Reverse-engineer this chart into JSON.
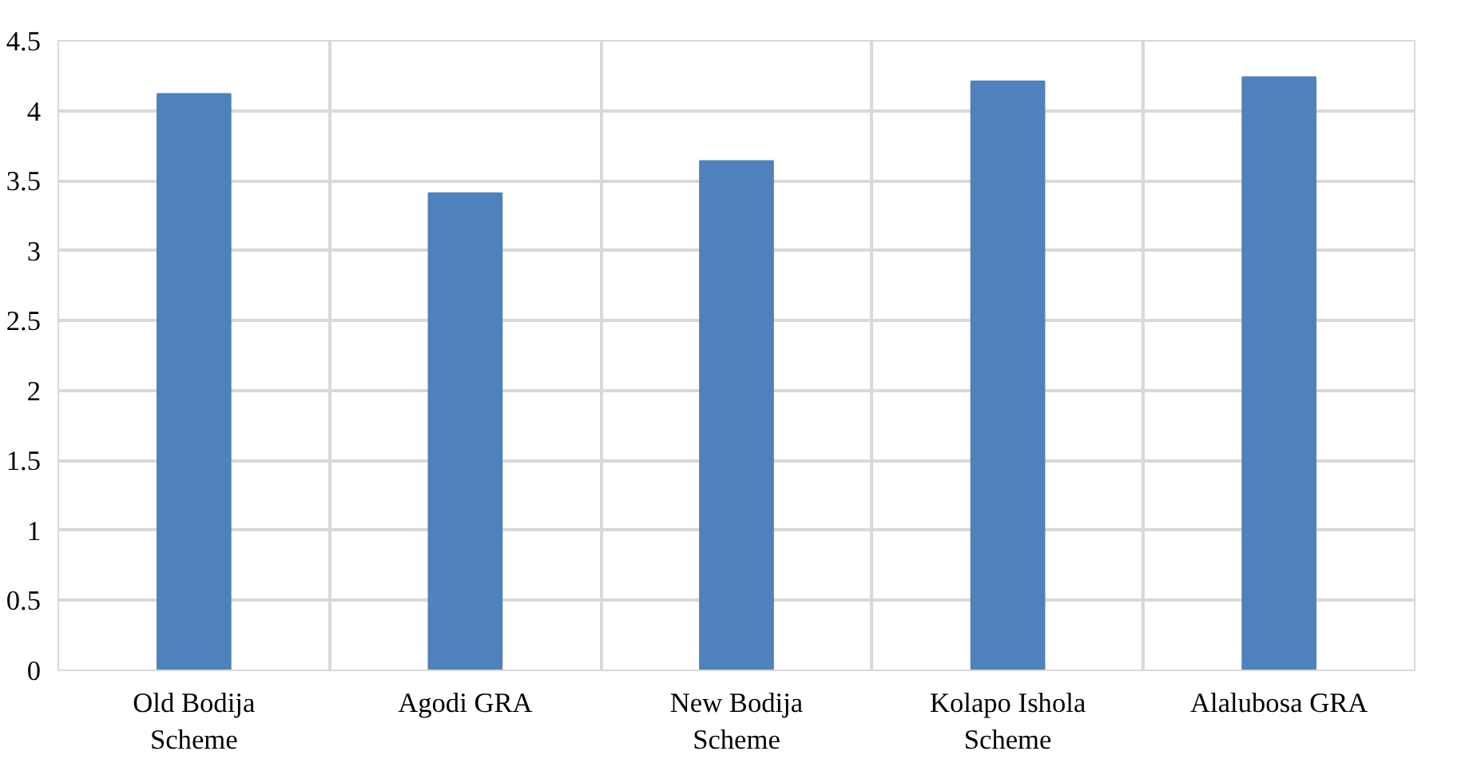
{
  "chart_data": {
    "type": "bar",
    "categories": [
      "Old Bodija Scheme",
      "Agodi GRA",
      "New Bodija Scheme",
      "Kolapo Ishola Scheme",
      "Alalubosa GRA"
    ],
    "values": [
      4.12,
      3.41,
      3.64,
      4.21,
      4.24
    ],
    "color": "#4f81bd",
    "ylim": [
      0,
      4.5
    ],
    "yticks": [
      0,
      0.5,
      1,
      1.5,
      2,
      2.5,
      3,
      3.5,
      4,
      4.5
    ],
    "grid": true
  }
}
